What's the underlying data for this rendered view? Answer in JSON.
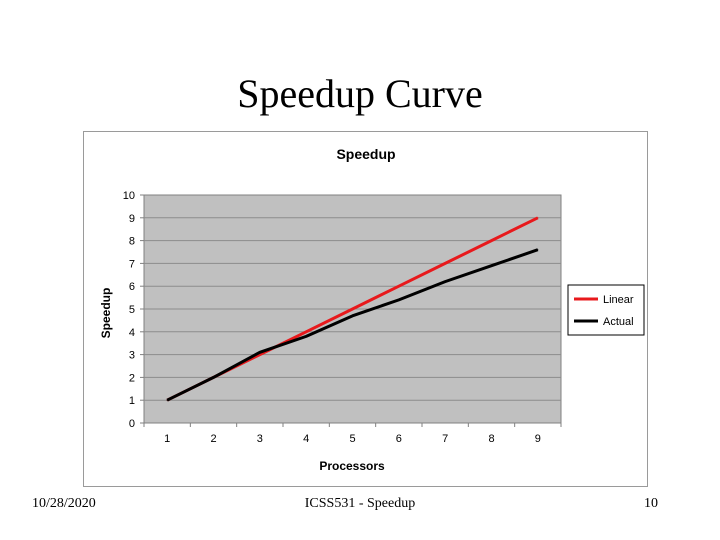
{
  "slide": {
    "title": "Speedup Curve",
    "footer_date": "10/28/2020",
    "footer_center": "ICSS531 - Speedup",
    "footer_page": "10"
  },
  "chart_data": {
    "type": "line",
    "title": "Speedup",
    "xlabel": "Processors",
    "ylabel": "Speedup",
    "categories": [
      "1",
      "2",
      "3",
      "4",
      "5",
      "6",
      "7",
      "8",
      "9"
    ],
    "ylim": [
      0,
      10
    ],
    "yticks": [
      "0",
      "1",
      "2",
      "3",
      "4",
      "5",
      "6",
      "7",
      "8",
      "9",
      "10"
    ],
    "grid": true,
    "legend_position": "right",
    "series": [
      {
        "name": "Linear",
        "color": "#e8191c",
        "values": [
          1,
          2,
          3,
          4,
          5,
          6,
          7,
          8,
          9
        ]
      },
      {
        "name": "Actual",
        "color": "#000000",
        "values": [
          1,
          2,
          3.1,
          3.8,
          4.7,
          5.4,
          6.2,
          6.9,
          7.6
        ]
      }
    ],
    "plot_background": "#c0c0c0"
  }
}
